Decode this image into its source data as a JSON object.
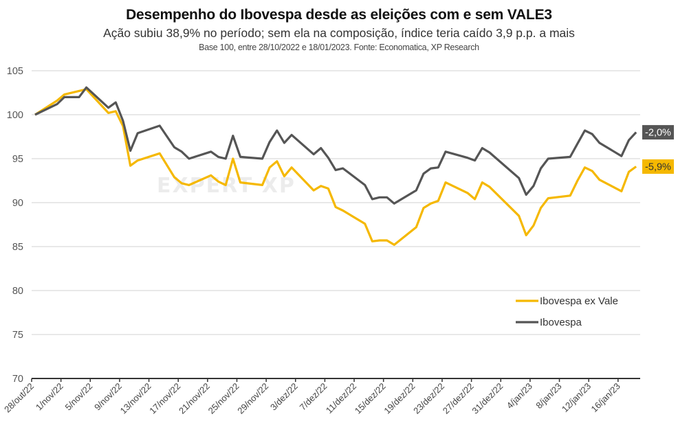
{
  "chart_data": {
    "type": "line",
    "title": "Desempenho do Ibovespa desde as eleições com e sem VALE3",
    "subtitle": "Ação subiu 38,9% no período; sem ela na composição, índice teria caído 3,9 p.p. a mais",
    "note": "Base 100, entre 28/10/2022 e 18/01/2023. Fonte: Economatica, XP Research",
    "watermark": "EXPERT XP",
    "xlabel": "",
    "ylabel": "",
    "ylim": [
      70,
      105
    ],
    "yticks": [
      70,
      75,
      80,
      85,
      90,
      95,
      100,
      105
    ],
    "grid": true,
    "legend_position": "bottom-right",
    "x_ticks": [
      {
        "day": 0,
        "label": "28/out/22"
      },
      {
        "day": 4,
        "label": "1/nov/22"
      },
      {
        "day": 8,
        "label": "5/nov/22"
      },
      {
        "day": 12,
        "label": "9/nov/22"
      },
      {
        "day": 16,
        "label": "13/nov/22"
      },
      {
        "day": 20,
        "label": "17/nov/22"
      },
      {
        "day": 24,
        "label": "21/nov/22"
      },
      {
        "day": 28,
        "label": "25/nov/22"
      },
      {
        "day": 32,
        "label": "29/nov/22"
      },
      {
        "day": 36,
        "label": "3/dez/22"
      },
      {
        "day": 40,
        "label": "7/dez/22"
      },
      {
        "day": 44,
        "label": "11/dez/22"
      },
      {
        "day": 48,
        "label": "15/dez/22"
      },
      {
        "day": 52,
        "label": "19/dez/22"
      },
      {
        "day": 56,
        "label": "23/dez/22"
      },
      {
        "day": 60,
        "label": "27/dez/22"
      },
      {
        "day": 64,
        "label": "31/dez/22"
      },
      {
        "day": 68,
        "label": "4/jan/23"
      },
      {
        "day": 72,
        "label": "8/jan/23"
      },
      {
        "day": 76,
        "label": "12/jan/23"
      },
      {
        "day": 80,
        "label": "16/jan/23"
      }
    ],
    "x_days": [
      0,
      3,
      4,
      6,
      7,
      10,
      11,
      12,
      13,
      14,
      17,
      19,
      20,
      21,
      24,
      25,
      26,
      27,
      28,
      31,
      32,
      33,
      34,
      35,
      38,
      39,
      40,
      41,
      42,
      45,
      46,
      47,
      48,
      49,
      52,
      53,
      54,
      55,
      56,
      59,
      60,
      61,
      62,
      66,
      67,
      68,
      69,
      70,
      73,
      74,
      75,
      76,
      77,
      80,
      81,
      82
    ],
    "x_dates": [
      "28/10/2022",
      "31/10/2022",
      "01/11/2022",
      "03/11/2022",
      "04/11/2022",
      "07/11/2022",
      "08/11/2022",
      "09/11/2022",
      "10/11/2022",
      "11/11/2022",
      "14/11/2022",
      "16/11/2022",
      "17/11/2022",
      "18/11/2022",
      "21/11/2022",
      "22/11/2022",
      "23/11/2022",
      "24/11/2022",
      "25/11/2022",
      "28/11/2022",
      "29/11/2022",
      "30/11/2022",
      "01/12/2022",
      "02/12/2022",
      "05/12/2022",
      "06/12/2022",
      "07/12/2022",
      "08/12/2022",
      "09/12/2022",
      "12/12/2022",
      "13/12/2022",
      "14/12/2022",
      "15/12/2022",
      "16/12/2022",
      "19/12/2022",
      "20/12/2022",
      "21/12/2022",
      "22/12/2022",
      "23/12/2022",
      "26/12/2022",
      "27/12/2022",
      "28/12/2022",
      "29/12/2022",
      "02/01/2023",
      "03/01/2023",
      "04/01/2023",
      "05/01/2023",
      "06/01/2023",
      "09/01/2023",
      "10/01/2023",
      "11/01/2023",
      "12/01/2023",
      "13/01/2023",
      "16/01/2023",
      "17/01/2023",
      "18/01/2023"
    ],
    "series": [
      {
        "name": "Ibovespa ex Vale",
        "color": "#F5B800",
        "end_label": "-5,9%",
        "values": [
          100.0,
          101.6,
          102.3,
          102.7,
          102.9,
          100.2,
          100.4,
          98.7,
          94.2,
          94.8,
          95.6,
          92.9,
          92.2,
          92.0,
          93.1,
          92.4,
          92.0,
          95.0,
          92.3,
          92.0,
          94.0,
          94.7,
          93.0,
          94.0,
          91.4,
          91.9,
          91.6,
          89.5,
          89.1,
          87.6,
          85.6,
          85.7,
          85.7,
          85.2,
          87.2,
          89.4,
          89.9,
          90.2,
          92.3,
          91.1,
          90.4,
          92.3,
          91.8,
          88.5,
          86.3,
          87.4,
          89.4,
          90.5,
          90.8,
          92.5,
          94.0,
          93.6,
          92.6,
          91.3,
          93.5,
          94.1
        ]
      },
      {
        "name": "Ibovespa",
        "color": "#555555",
        "end_label": "-2,0%",
        "values": [
          100.0,
          101.2,
          102.0,
          102.0,
          103.1,
          100.8,
          101.4,
          99.3,
          95.9,
          97.9,
          98.75,
          96.3,
          95.8,
          95.0,
          95.8,
          95.2,
          95.0,
          97.6,
          95.2,
          95.0,
          96.9,
          98.2,
          96.8,
          97.7,
          95.5,
          96.2,
          95.1,
          93.7,
          93.9,
          92.0,
          90.4,
          90.6,
          90.6,
          89.9,
          91.4,
          93.3,
          93.9,
          94.0,
          95.8,
          95.1,
          94.8,
          96.2,
          95.7,
          92.8,
          90.9,
          91.9,
          93.9,
          95.0,
          95.2,
          96.7,
          98.2,
          97.8,
          96.8,
          95.3,
          97.1,
          98.0
        ]
      }
    ]
  }
}
